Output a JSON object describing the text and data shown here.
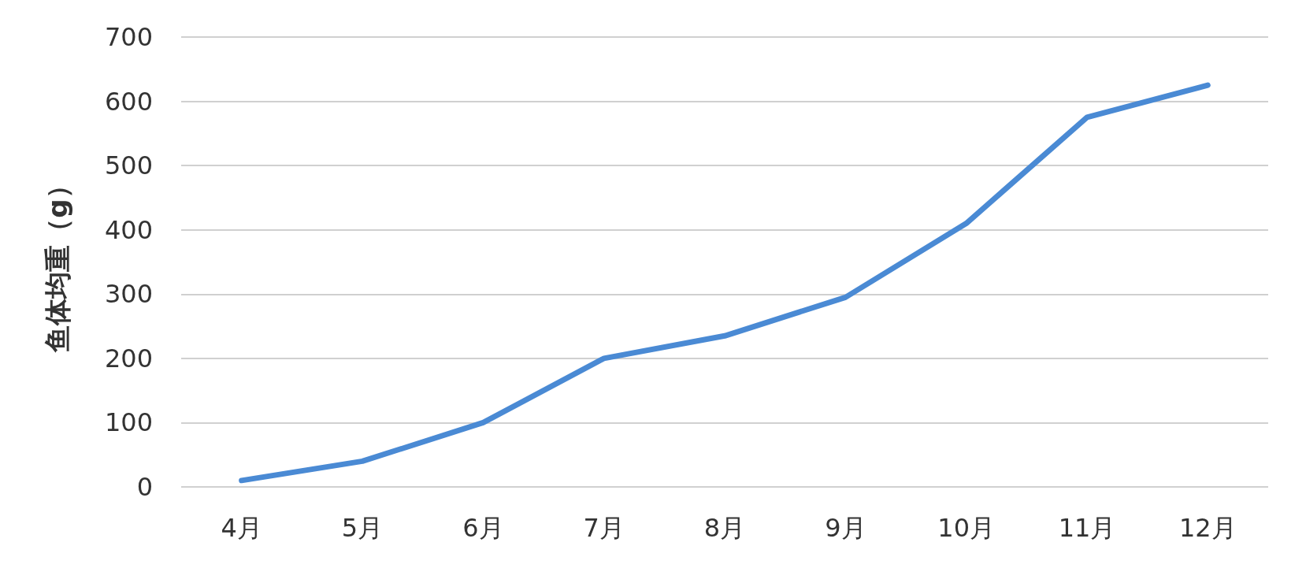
{
  "chart_data": {
    "type": "line",
    "ylabel": "鱼体均重（g）",
    "categories": [
      "4月",
      "5月",
      "6月",
      "7月",
      "8月",
      "9月",
      "10月",
      "11月",
      "12月"
    ],
    "series": [
      {
        "color": "#4a8ad4",
        "values": [
          10,
          40,
          100,
          200,
          235,
          295,
          410,
          575,
          625
        ]
      }
    ],
    "ylim": [
      0,
      700
    ],
    "yticks": [
      0,
      100,
      200,
      300,
      400,
      500,
      600,
      700
    ],
    "grid": "y",
    "marker": "none",
    "line_style": "solid"
  }
}
